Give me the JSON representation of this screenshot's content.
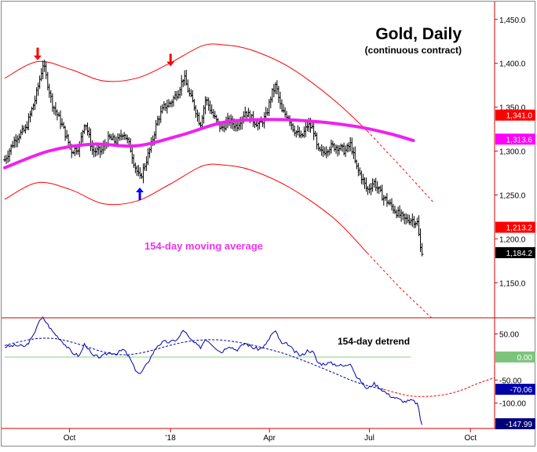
{
  "chart_data": [
    {
      "type": "ohlc",
      "title": "Gold, Daily",
      "subtitle": "(continuous contract)",
      "annotation": "154-day moving average",
      "ylim": [
        1110,
        1465
      ],
      "y_ticks": [
        1150,
        1200,
        1250,
        1300,
        1350,
        1400,
        1450
      ],
      "y_tick_labels": [
        "1,150.0",
        "1,200.0",
        "1,250.0",
        "1,300.0",
        "1,350.0",
        "1,400.0",
        "1,450.0"
      ],
      "x_tick_labels": [
        "Oct",
        "'18",
        "Apr",
        "Jul",
        "Oct"
      ],
      "x_tick_days": [
        59,
        151,
        241,
        332,
        424
      ],
      "x_range_days": [
        0,
        446
      ],
      "price_labels": [
        {
          "value": 1341.0,
          "text": "1,341.0",
          "color": "#ff0000"
        },
        {
          "value": 1313.6,
          "text": "1,313.6",
          "color": "#ff00ff"
        },
        {
          "value": 1213.2,
          "text": "1,213.2",
          "color": "#ff0000"
        },
        {
          "value": 1184.2,
          "text": "1,184.2",
          "color": "#000000"
        }
      ],
      "price_anchors": [
        [
          0,
          1290
        ],
        [
          10,
          1315
        ],
        [
          19,
          1325
        ],
        [
          28,
          1360
        ],
        [
          35,
          1400
        ],
        [
          43,
          1355
        ],
        [
          52,
          1330
        ],
        [
          61,
          1300
        ],
        [
          68,
          1305
        ],
        [
          73,
          1335
        ],
        [
          80,
          1300
        ],
        [
          88,
          1300
        ],
        [
          95,
          1315
        ],
        [
          102,
          1310
        ],
        [
          108,
          1322
        ],
        [
          114,
          1305
        ],
        [
          118,
          1285
        ],
        [
          123,
          1268
        ],
        [
          127,
          1282
        ],
        [
          133,
          1305
        ],
        [
          139,
          1335
        ],
        [
          145,
          1350
        ],
        [
          151,
          1355
        ],
        [
          158,
          1368
        ],
        [
          163,
          1385
        ],
        [
          168,
          1365
        ],
        [
          173,
          1350
        ],
        [
          178,
          1330
        ],
        [
          183,
          1360
        ],
        [
          190,
          1340
        ],
        [
          197,
          1325
        ],
        [
          204,
          1335
        ],
        [
          211,
          1328
        ],
        [
          219,
          1345
        ],
        [
          226,
          1335
        ],
        [
          232,
          1330
        ],
        [
          238,
          1340
        ],
        [
          243,
          1365
        ],
        [
          247,
          1375
        ],
        [
          252,
          1345
        ],
        [
          258,
          1340
        ],
        [
          263,
          1325
        ],
        [
          270,
          1315
        ],
        [
          276,
          1330
        ],
        [
          281,
          1325
        ],
        [
          285,
          1300
        ],
        [
          289,
          1298
        ],
        [
          296,
          1305
        ],
        [
          303,
          1305
        ],
        [
          310,
          1300
        ],
        [
          315,
          1308
        ],
        [
          320,
          1282
        ],
        [
          325,
          1270
        ],
        [
          330,
          1255
        ],
        [
          336,
          1265
        ],
        [
          343,
          1250
        ],
        [
          350,
          1240
        ],
        [
          357,
          1230
        ],
        [
          364,
          1222
        ],
        [
          371,
          1222
        ],
        [
          376,
          1218
        ],
        [
          378,
          1190
        ],
        [
          380,
          1186
        ]
      ],
      "moving_average": [
        [
          0,
          1281
        ],
        [
          40,
          1300
        ],
        [
          80,
          1308
        ],
        [
          120,
          1306
        ],
        [
          160,
          1318
        ],
        [
          200,
          1333
        ],
        [
          240,
          1336
        ],
        [
          280,
          1334
        ],
        [
          320,
          1328
        ],
        [
          350,
          1320
        ],
        [
          372,
          1312
        ]
      ],
      "upper_band": [
        [
          0,
          1383
        ],
        [
          30,
          1402
        ],
        [
          60,
          1393
        ],
        [
          90,
          1380
        ],
        [
          120,
          1383
        ],
        [
          150,
          1400
        ],
        [
          180,
          1420
        ],
        [
          200,
          1421
        ],
        [
          225,
          1415
        ],
        [
          260,
          1395
        ],
        [
          300,
          1358
        ],
        [
          330,
          1323
        ]
      ],
      "upper_band_projection": [
        [
          330,
          1323
        ],
        [
          360,
          1283
        ],
        [
          390,
          1242
        ]
      ],
      "lower_band": [
        [
          0,
          1245
        ],
        [
          30,
          1264
        ],
        [
          60,
          1256
        ],
        [
          90,
          1240
        ],
        [
          120,
          1243
        ],
        [
          150,
          1262
        ],
        [
          180,
          1283
        ],
        [
          200,
          1284
        ],
        [
          225,
          1278
        ],
        [
          260,
          1258
        ],
        [
          300,
          1223
        ],
        [
          330,
          1184
        ]
      ],
      "lower_band_projection": [
        [
          330,
          1184
        ],
        [
          360,
          1144
        ],
        [
          390,
          1108
        ]
      ],
      "markers": [
        {
          "day": 30,
          "value": 1400,
          "direction": "down",
          "color": "#ff0000"
        },
        {
          "day": 151,
          "value": 1393,
          "direction": "down",
          "color": "#ff0000"
        },
        {
          "day": 123,
          "value": 1262,
          "direction": "up",
          "color": "#0000ff"
        }
      ]
    },
    {
      "type": "line",
      "title": "154-day detrend",
      "ylim": [
        -155,
        85
      ],
      "y_ticks": [
        50,
        -50,
        -100
      ],
      "y_tick_labels": [
        "50.00",
        "-50.00",
        "-100.00"
      ],
      "zero_line": 0,
      "value_labels": [
        {
          "value": 0,
          "text": "0.00",
          "color": "#7cc47c"
        },
        {
          "value": -70.06,
          "text": "-70.06",
          "color": "#0000aa"
        },
        {
          "value": -147.99,
          "text": "-147.99",
          "color": "#00007a"
        }
      ],
      "series": [
        {
          "name": "detrend",
          "color": "#0000aa",
          "values": [
            [
              0,
              22
            ],
            [
              10,
              25
            ],
            [
              19,
              23
            ],
            [
              26,
              45
            ],
            [
              30,
              73
            ],
            [
              35,
              85
            ],
            [
              43,
              57
            ],
            [
              52,
              35
            ],
            [
              61,
              10
            ],
            [
              68,
              2
            ],
            [
              73,
              30
            ],
            [
              80,
              2
            ],
            [
              88,
              0
            ],
            [
              95,
              10
            ],
            [
              102,
              7
            ],
            [
              108,
              17
            ],
            [
              114,
              -3
            ],
            [
              118,
              -24
            ],
            [
              123,
              -38
            ],
            [
              127,
              -25
            ],
            [
              133,
              0
            ],
            [
              139,
              25
            ],
            [
              145,
              33
            ],
            [
              151,
              32
            ],
            [
              158,
              40
            ],
            [
              163,
              60
            ],
            [
              168,
              40
            ],
            [
              173,
              30
            ],
            [
              178,
              20
            ],
            [
              183,
              40
            ],
            [
              190,
              25
            ],
            [
              197,
              10
            ],
            [
              204,
              25
            ],
            [
              211,
              15
            ],
            [
              219,
              30
            ],
            [
              226,
              20
            ],
            [
              232,
              17
            ],
            [
              238,
              27
            ],
            [
              243,
              50
            ],
            [
              247,
              55
            ],
            [
              252,
              28
            ],
            [
              258,
              28
            ],
            [
              263,
              13
            ],
            [
              270,
              2
            ],
            [
              276,
              15
            ],
            [
              281,
              10
            ],
            [
              285,
              -13
            ],
            [
              289,
              -15
            ],
            [
              296,
              -13
            ],
            [
              303,
              -17
            ],
            [
              310,
              -20
            ],
            [
              315,
              -12
            ],
            [
              320,
              -42
            ],
            [
              325,
              -55
            ],
            [
              330,
              -70
            ],
            [
              336,
              -57
            ],
            [
              343,
              -70
            ],
            [
              350,
              -83
            ],
            [
              357,
              -90
            ],
            [
              364,
              -97
            ],
            [
              371,
              -94
            ],
            [
              376,
              -102
            ],
            [
              378,
              -130
            ],
            [
              380,
              -148
            ]
          ]
        },
        {
          "name": "cycle",
          "color": "#0000aa",
          "dashed": true,
          "values": [
            [
              0,
              25
            ],
            [
              15,
              34
            ],
            [
              30,
              40
            ],
            [
              45,
              40
            ],
            [
              60,
              33
            ],
            [
              75,
              22
            ],
            [
              90,
              11
            ],
            [
              105,
              5
            ],
            [
              120,
              7
            ],
            [
              135,
              15
            ],
            [
              150,
              25
            ],
            [
              165,
              33
            ],
            [
              180,
              37
            ],
            [
              195,
              37
            ],
            [
              210,
              33
            ],
            [
              225,
              26
            ],
            [
              240,
              17
            ],
            [
              255,
              7
            ],
            [
              270,
              -6
            ],
            [
              285,
              -20
            ],
            [
              300,
              -35
            ],
            [
              315,
              -50
            ],
            [
              330,
              -62
            ],
            [
              345,
              -70
            ]
          ]
        },
        {
          "name": "projection",
          "color": "#ff0000",
          "dashed": true,
          "values": [
            [
              345,
              -70
            ],
            [
              360,
              -80
            ],
            [
              372,
              -85
            ],
            [
              388,
              -85
            ],
            [
              404,
              -80
            ],
            [
              418,
              -70
            ],
            [
              430,
              -58
            ],
            [
              446,
              -45
            ]
          ]
        }
      ]
    }
  ]
}
